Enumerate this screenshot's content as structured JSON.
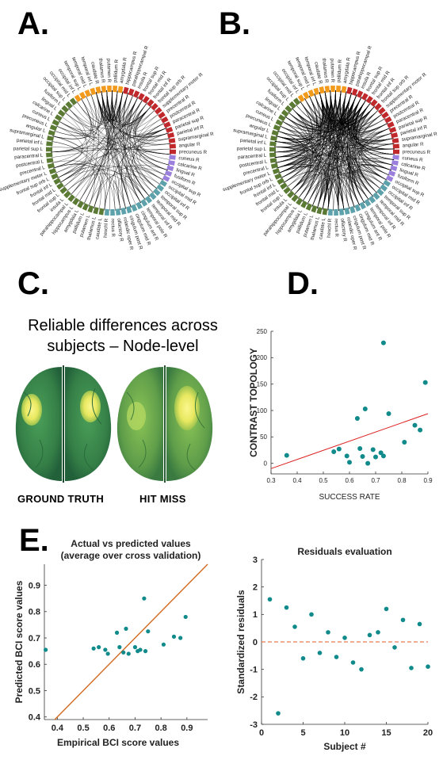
{
  "panels": {
    "a": "A.",
    "b": "B.",
    "c": "C.",
    "d": "D.",
    "e": "E."
  },
  "circle_colors": {
    "orange": "#f29a1c",
    "red": "#c0282b",
    "purple": "#9b7fdc",
    "teal": "#5da2ab",
    "green": "#5b7a34"
  },
  "circle_a": {
    "labels": [
      "caudate R",
      "thalamus R",
      "putamen R",
      "pallidum R",
      "amygdala R",
      "hippocampus R",
      "parahippocampal R",
      "insula R",
      "frontal sup R",
      "frontal mid R",
      "frontal inf R",
      "frontal sup orb R",
      "supplementary motor R",
      "precentral R",
      "postcentral R",
      "paracentral R",
      "parietal sup R",
      "parietal inf R",
      "supramarginal R",
      "angular R",
      "precuneus R",
      "cuneus R",
      "calcarine R",
      "lingual R",
      "fusiform R",
      "occipital sup R",
      "occipital mid R",
      "occipital inf R",
      "temporal sup R",
      "temporal mid R",
      "temporal inf R",
      "temporal pole R",
      "cingulum ant R",
      "cingulum mid R",
      "cingulum post R",
      "rolandic oper R",
      "olfactory R",
      "rectus R",
      "heschl R",
      "caudate L",
      "thalamus L",
      "putamen L",
      "pallidum L",
      "amygdala L",
      "hippocampus L",
      "parahippocampal L",
      "insula L",
      "frontal sup L",
      "frontal mid L",
      "frontal inf L",
      "frontal sup orb L",
      "supplementary motor L",
      "precentral L",
      "postcentral L",
      "paracentral L",
      "parietal sup L",
      "parietal inf L",
      "supramarginal L",
      "angular L",
      "precuneus L",
      "cuneus L",
      "calcarine L",
      "lingual L",
      "fusiform L",
      "occipital sup L",
      "occipital mid L",
      "occipital inf L",
      "temporal sup L",
      "temporal mid L",
      "temporal inf L"
    ]
  },
  "circle_b": {
    "labels": [
      "caudate R",
      "thalamus R",
      "putamen R",
      "pallidum R",
      "amygdala R",
      "hippocampus R",
      "parahippocampal R",
      "insula R",
      "frontal sup R",
      "frontal mid R",
      "frontal inf R",
      "frontal sup orb R",
      "supplementary motor R",
      "precentral R",
      "postcentral R",
      "paracentral R",
      "parietal sup R",
      "parietal inf R",
      "supramarginal R",
      "angular R",
      "precuneus R",
      "cuneus R",
      "calcarine R",
      "lingual R",
      "fusiform R",
      "occipital sup R",
      "occipital mid R",
      "occipital inf R",
      "temporal sup R",
      "temporal mid R",
      "temporal inf R",
      "temporal pole R",
      "cingulum ant R",
      "cingulum mid R",
      "cingulum post R",
      "rolandic oper R",
      "olfactory R",
      "rectus R",
      "heschl R",
      "caudate L",
      "thalamus L",
      "putamen L",
      "pallidum L",
      "amygdala L",
      "hippocampus L",
      "parahippocampal L",
      "insula L",
      "frontal sup L",
      "frontal mid L",
      "frontal inf L",
      "frontal sup orb L",
      "supplementary motor L",
      "precentral L",
      "postcentral L",
      "paracentral L",
      "parietal sup L",
      "parietal inf L",
      "supramarginal L",
      "angular L",
      "precuneus L",
      "cuneus L",
      "calcarine L",
      "lingual L",
      "fusiform L",
      "occipital sup L",
      "occipital mid L",
      "occipital inf L",
      "temporal sup L",
      "temporal mid L",
      "temporal inf L"
    ]
  },
  "panel_c": {
    "title_line1": "Reliable differences across",
    "title_line2": "subjects – Node-level",
    "left_label": "GROUND TRUTH",
    "right_label": "HIT MISS"
  },
  "chart_data": [
    {
      "type": "scatter",
      "xlabel": "SUCCESS RATE",
      "ylabel": "CONTRAST TOPOLOGY",
      "xlim": [
        0.3,
        0.9
      ],
      "ylim": [
        -20,
        250
      ],
      "xticks": [
        "0.3",
        "0.4",
        "0.5",
        "0.6",
        "0.7",
        "0.8",
        "0.9"
      ],
      "yticks": [
        "0",
        "50",
        "100",
        "150",
        "200",
        "250"
      ],
      "x": [
        0.36,
        0.54,
        0.56,
        0.59,
        0.6,
        0.63,
        0.64,
        0.65,
        0.66,
        0.67,
        0.69,
        0.7,
        0.72,
        0.73,
        0.73,
        0.75,
        0.81,
        0.85,
        0.87,
        0.89
      ],
      "y": [
        15,
        22,
        27,
        14,
        2,
        85,
        28,
        13,
        103,
        0,
        26,
        12,
        20,
        228,
        14,
        94,
        40,
        72,
        63,
        153
      ],
      "fit": [
        [
          0.3,
          -10
        ],
        [
          0.9,
          94
        ]
      ]
    },
    {
      "type": "scatter",
      "title_line1": "Actual vs predicted values",
      "title_line2": "(average over cross validation)",
      "xlabel": "Empirical BCI score values",
      "ylabel": "Predicted BCI score values",
      "xlim": [
        0.35,
        0.98
      ],
      "ylim": [
        0.39,
        0.98
      ],
      "xticks": [
        "0.4",
        "0.5",
        "0.6",
        "0.7",
        "0.8",
        "0.9"
      ],
      "yticks": [
        "0.4",
        "0.5",
        "0.6",
        "0.7",
        "0.8",
        "0.9"
      ],
      "x": [
        0.355,
        0.54,
        0.56,
        0.585,
        0.595,
        0.63,
        0.64,
        0.655,
        0.665,
        0.675,
        0.7,
        0.71,
        0.72,
        0.735,
        0.74,
        0.75,
        0.81,
        0.85,
        0.875,
        0.895
      ],
      "y": [
        0.655,
        0.66,
        0.665,
        0.655,
        0.64,
        0.72,
        0.665,
        0.645,
        0.735,
        0.64,
        0.665,
        0.65,
        0.655,
        0.85,
        0.65,
        0.725,
        0.675,
        0.705,
        0.7,
        0.78
      ],
      "diagonal": [
        [
          0.35,
          0.35
        ],
        [
          0.98,
          0.98
        ]
      ]
    },
    {
      "type": "scatter",
      "title": "Residuals evaluation",
      "xlabel": "Subject #",
      "ylabel": "Standardized residuals",
      "xlim": [
        0,
        20
      ],
      "ylim": [
        -3,
        3
      ],
      "xticks": [
        "0",
        "5",
        "10",
        "15",
        "20"
      ],
      "yticks": [
        "-3",
        "-2",
        "-1",
        "0",
        "1",
        "2",
        "3"
      ],
      "x": [
        1,
        2,
        3,
        4,
        5,
        6,
        7,
        8,
        9,
        10,
        11,
        12,
        13,
        14,
        15,
        16,
        17,
        18,
        19,
        20
      ],
      "y": [
        1.55,
        -2.6,
        1.25,
        0.55,
        -0.6,
        1.0,
        -0.4,
        0.35,
        -0.55,
        0.15,
        -0.75,
        -1.0,
        0.25,
        0.35,
        1.2,
        -0.2,
        0.8,
        -0.95,
        0.65,
        -0.9
      ]
    }
  ]
}
